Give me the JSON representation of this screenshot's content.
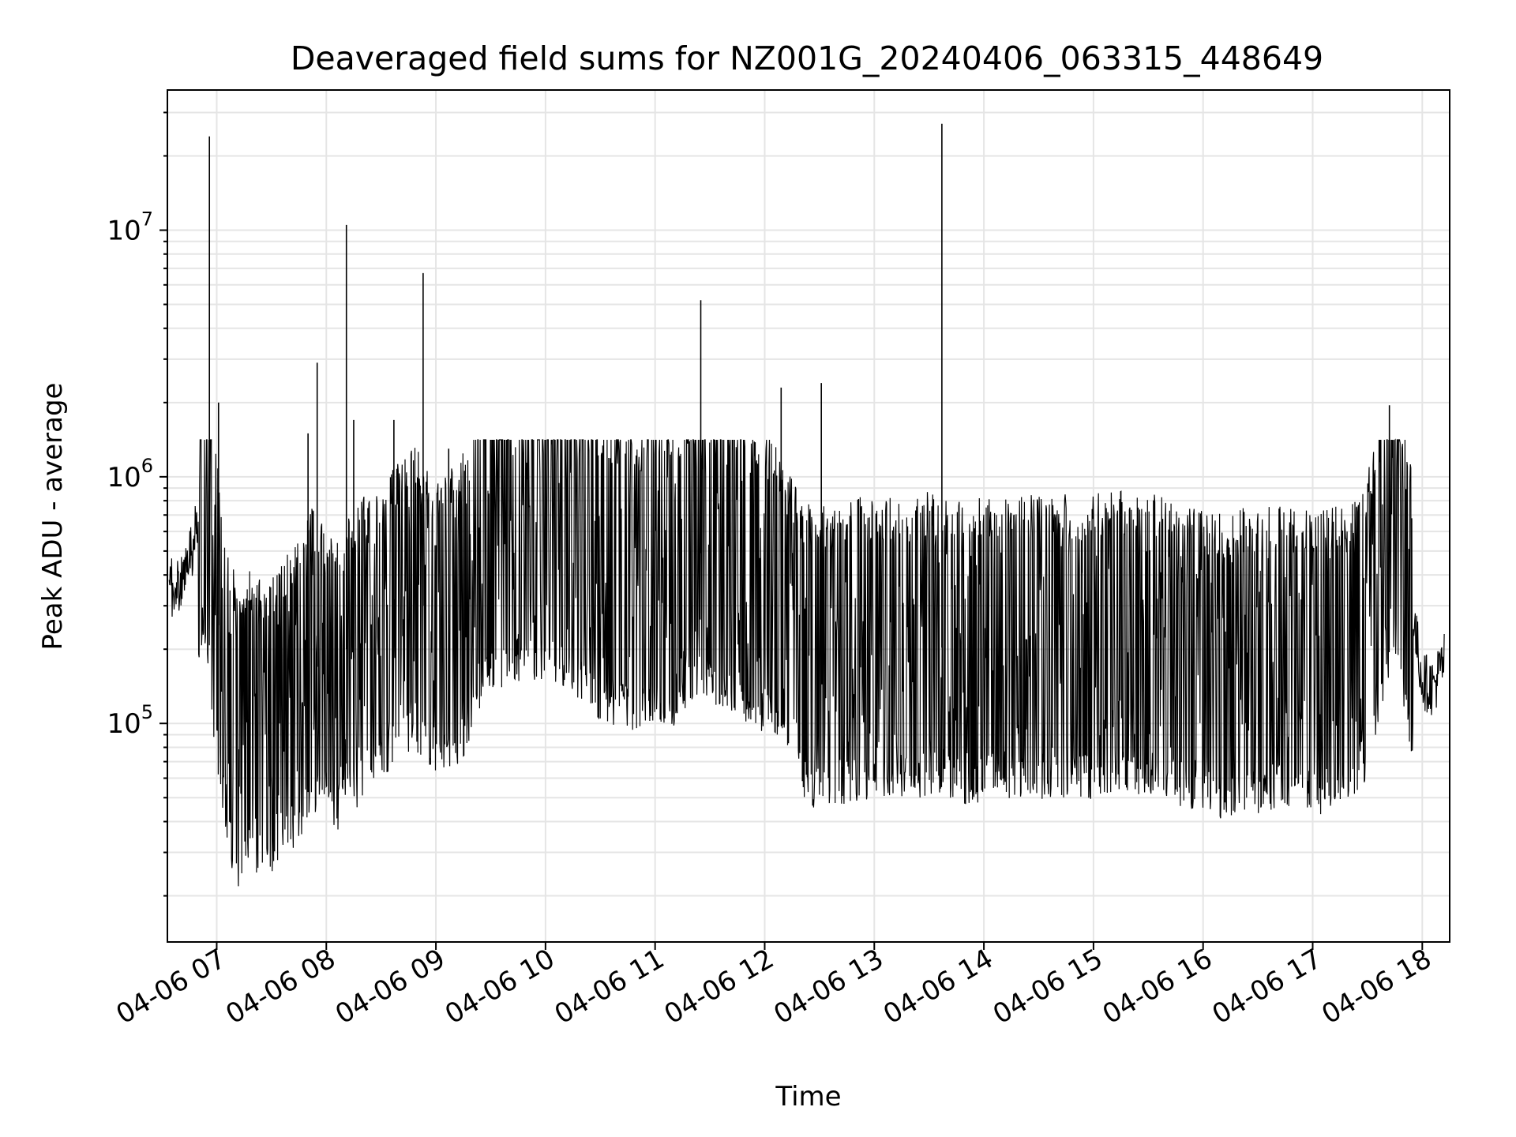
{
  "chart_data": {
    "type": "line",
    "title": "Deaveraged field sums for NZ001G_20240406_063315_448649",
    "xlabel": "Time",
    "ylabel": "Peak ADU - average",
    "yscale": "log",
    "grid": true,
    "line_color": "#000000",
    "grid_color": "#e5e5e5",
    "x_ticks": [
      "04-06 07",
      "04-06 08",
      "04-06 09",
      "04-06 10",
      "04-06 11",
      "04-06 12",
      "04-06 13",
      "04-06 14",
      "04-06 15",
      "04-06 16",
      "04-06 17",
      "04-06 18"
    ],
    "y_ticks": [
      {
        "value": 100000,
        "base": "10",
        "exp": "5"
      },
      {
        "value": 1000000,
        "base": "10",
        "exp": "6"
      },
      {
        "value": 10000000,
        "base": "10",
        "exp": "7"
      }
    ],
    "xlim": [
      "2024-04-06 06:33",
      "2024-04-06 18:15"
    ],
    "ylim": [
      13000,
      37000000
    ],
    "series": [
      {
        "x": [
          "2024-04-06 06:34",
          "2024-04-06 06:42",
          "2024-04-06 06:50",
          "2024-04-06 06:54",
          "2024-04-06 06:56",
          "2024-04-06 06:58",
          "2024-04-06 07:01",
          "2024-04-06 07:06",
          "2024-04-06 07:12",
          "2024-04-06 07:18",
          "2024-04-06 07:24",
          "2024-04-06 07:30",
          "2024-04-06 07:35",
          "2024-04-06 07:41",
          "2024-04-06 07:46",
          "2024-04-06 07:48",
          "2024-04-06 07:52",
          "2024-04-06 07:58",
          "2024-04-06 08:04",
          "2024-04-06 08:10",
          "2024-04-06 08:11",
          "2024-04-06 08:16",
          "2024-04-06 08:24",
          "2024-04-06 08:32",
          "2024-04-06 08:40",
          "2024-04-06 08:48",
          "2024-04-06 08:53",
          "2024-04-06 08:58",
          "2024-04-06 09:06",
          "2024-04-06 09:15",
          "2024-04-06 09:24",
          "2024-04-06 09:30",
          "2024-04-06 09:40",
          "2024-04-06 09:50",
          "2024-04-06 10:00",
          "2024-04-06 10:10",
          "2024-04-06 10:20",
          "2024-04-06 10:30",
          "2024-04-06 10:40",
          "2024-04-06 10:50",
          "2024-04-06 11:00",
          "2024-04-06 11:10",
          "2024-04-06 11:14",
          "2024-04-06 11:20",
          "2024-04-06 11:30",
          "2024-04-06 11:40",
          "2024-04-06 11:50",
          "2024-04-06 12:00",
          "2024-04-06 12:10",
          "2024-04-06 12:20",
          "2024-04-06 12:30",
          "2024-04-06 12:40",
          "2024-04-06 12:50",
          "2024-04-06 13:00",
          "2024-04-06 13:10",
          "2024-04-06 13:20",
          "2024-04-06 13:30",
          "2024-04-06 13:40",
          "2024-04-06 13:50",
          "2024-04-06 14:00",
          "2024-04-06 14:10",
          "2024-04-06 14:20",
          "2024-04-06 14:30",
          "2024-04-06 14:40",
          "2024-04-06 14:50",
          "2024-04-06 15:00",
          "2024-04-06 15:10",
          "2024-04-06 15:20",
          "2024-04-06 15:30",
          "2024-04-06 15:40",
          "2024-04-06 15:50",
          "2024-04-06 16:00",
          "2024-04-06 16:10",
          "2024-04-06 16:20",
          "2024-04-06 16:30",
          "2024-04-06 16:40",
          "2024-04-06 16:50",
          "2024-04-06 17:00",
          "2024-04-06 17:10",
          "2024-04-06 17:20",
          "2024-04-06 17:30",
          "2024-04-06 17:36",
          "2024-04-06 17:42",
          "2024-04-06 17:48",
          "2024-04-06 17:54",
          "2024-04-06 18:00",
          "2024-04-06 18:06",
          "2024-04-06 18:12"
        ],
        "y": [
          350000,
          380000,
          650000,
          900000,
          600000,
          380000,
          250000,
          120000,
          90000,
          110000,
          100000,
          95000,
          110000,
          120000,
          140000,
          150000,
          180000,
          160000,
          140000,
          180000,
          200000,
          180000,
          220000,
          250000,
          280000,
          320000,
          300000,
          240000,
          250000,
          300000,
          450000,
          550000,
          600000,
          620000,
          600000,
          550000,
          480000,
          430000,
          400000,
          380000,
          420000,
          400000,
          450000,
          500000,
          480000,
          450000,
          420000,
          380000,
          300000,
          200000,
          180000,
          190000,
          200000,
          200000,
          210000,
          200000,
          210000,
          200000,
          190000,
          200000,
          210000,
          200000,
          205000,
          210000,
          200000,
          205000,
          210000,
          215000,
          210000,
          200000,
          190000,
          180000,
          170000,
          180000,
          175000,
          185000,
          180000,
          175000,
          180000,
          200000,
          250000,
          400000,
          600000,
          500000,
          300000,
          150000,
          140000,
          180000
        ],
        "spikes": [
          {
            "x": "2024-04-06 06:56",
            "y": 24000000
          },
          {
            "x": "2024-04-06 07:01",
            "y": 2000000
          },
          {
            "x": "2024-04-06 07:50",
            "y": 1500000
          },
          {
            "x": "2024-04-06 07:55",
            "y": 2900000
          },
          {
            "x": "2024-04-06 08:11",
            "y": 10500000
          },
          {
            "x": "2024-04-06 08:15",
            "y": 1700000
          },
          {
            "x": "2024-04-06 08:37",
            "y": 1700000
          },
          {
            "x": "2024-04-06 08:53",
            "y": 6700000
          },
          {
            "x": "2024-04-06 09:07",
            "y": 1300000
          },
          {
            "x": "2024-04-06 11:25",
            "y": 5200000
          },
          {
            "x": "2024-04-06 12:09",
            "y": 2300000
          },
          {
            "x": "2024-04-06 12:31",
            "y": 2400000
          },
          {
            "x": "2024-04-06 13:37",
            "y": 27000000
          },
          {
            "x": "2024-04-06 17:42",
            "y": 1950000
          }
        ]
      }
    ]
  }
}
